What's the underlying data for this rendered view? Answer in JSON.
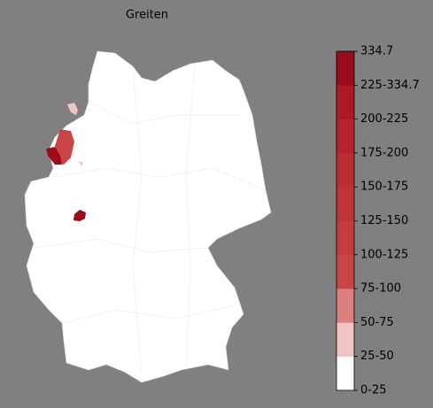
{
  "title": "Greiten",
  "legend": {
    "labels": [
      "0-25",
      "25-50",
      "50-75",
      "75-100",
      "100-125",
      "125-150",
      "150-175",
      "175-200",
      "200-225",
      "225-334.7",
      "334.7"
    ],
    "colors": [
      "#ffffff",
      "#f0c4c4",
      "#dc7f7f",
      "#c94545",
      "#c43d3d",
      "#bf3536",
      "#ba2d30",
      "#b4242a",
      "#ac1a24",
      "#9c0b1c"
    ]
  }
}
